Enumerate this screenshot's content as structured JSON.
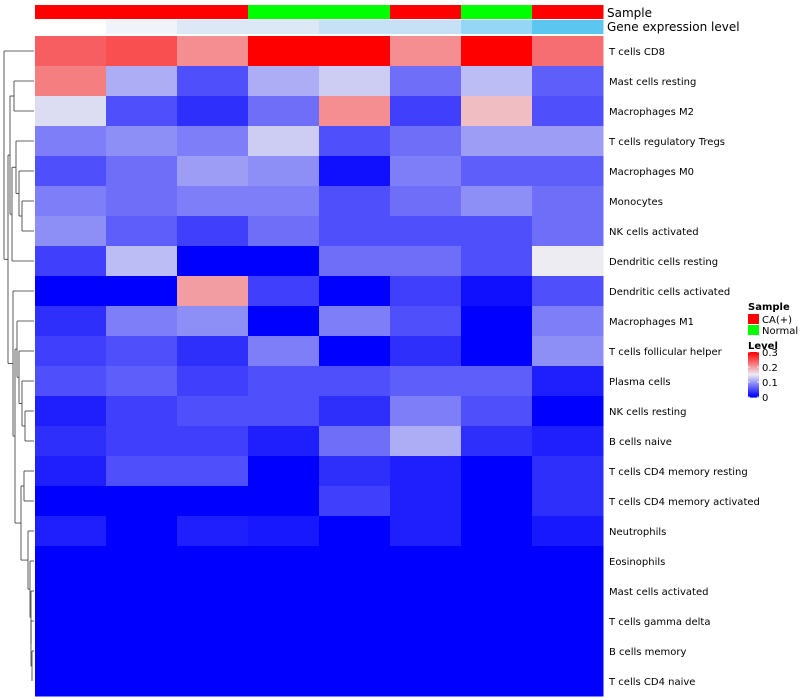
{
  "chart_data": {
    "type": "heatmap",
    "column_annotations": [
      {
        "name": "Sample",
        "values": [
          "CA(+)",
          "CA(+)",
          "CA(+)",
          "Normal",
          "Normal",
          "CA(+)",
          "Normal",
          "CA(+)"
        ]
      },
      {
        "name": "Gene expression level",
        "values": [
          0,
          1,
          2,
          2,
          3,
          3,
          4,
          5
        ]
      }
    ],
    "rows": [
      "T cells CD8",
      "Mast cells resting",
      "Macrophages M2",
      "T cells regulatory  Tregs",
      "Macrophages M0",
      "Monocytes",
      "NK cells activated",
      "Dendritic cells resting",
      "Dendritic cells activated",
      "Macrophages M1",
      "T cells follicular helper",
      "Plasma cells",
      "NK cells resting",
      "B cells naive",
      "T cells CD4 memory resting",
      "T cells CD4 memory activated",
      "Neutrophils",
      "Eosinophils",
      "Mast cells activated",
      "T cells gamma delta",
      "B cells memory",
      "T cells CD4 naive"
    ],
    "values": [
      [
        0.24,
        0.25,
        0.21,
        0.3,
        0.3,
        0.21,
        0.3,
        0.23
      ],
      [
        0.22,
        0.11,
        0.05,
        0.11,
        0.13,
        0.07,
        0.12,
        0.06
      ],
      [
        0.14,
        0.05,
        0.03,
        0.07,
        0.21,
        0.04,
        0.18,
        0.05
      ],
      [
        0.08,
        0.09,
        0.08,
        0.13,
        0.05,
        0.07,
        0.1,
        0.1
      ],
      [
        0.05,
        0.07,
        0.1,
        0.09,
        0.01,
        0.08,
        0.06,
        0.06
      ],
      [
        0.08,
        0.07,
        0.08,
        0.08,
        0.05,
        0.07,
        0.09,
        0.07
      ],
      [
        0.09,
        0.06,
        0.04,
        0.07,
        0.05,
        0.05,
        0.05,
        0.07
      ],
      [
        0.04,
        0.12,
        0.0,
        0.0,
        0.07,
        0.07,
        0.05,
        0.15
      ],
      [
        0.0,
        0.0,
        0.2,
        0.04,
        0.0,
        0.04,
        0.01,
        0.05
      ],
      [
        0.03,
        0.08,
        0.09,
        0.0,
        0.08,
        0.05,
        0.0,
        0.08
      ],
      [
        0.04,
        0.05,
        0.03,
        0.08,
        0.0,
        0.03,
        0.0,
        0.09
      ],
      [
        0.05,
        0.06,
        0.04,
        0.05,
        0.05,
        0.06,
        0.06,
        0.02
      ],
      [
        0.02,
        0.04,
        0.05,
        0.05,
        0.03,
        0.08,
        0.05,
        0.0
      ],
      [
        0.03,
        0.04,
        0.04,
        0.02,
        0.07,
        0.11,
        0.03,
        0.02
      ],
      [
        0.02,
        0.05,
        0.05,
        0.0,
        0.03,
        0.02,
        0.0,
        0.03
      ],
      [
        0.0,
        0.0,
        0.0,
        0.0,
        0.04,
        0.02,
        0.0,
        0.03
      ],
      [
        0.02,
        0.0,
        0.02,
        0.015,
        0.0,
        0.02,
        0.0,
        0.015
      ],
      [
        0.0,
        0.0,
        0.0,
        0.0,
        0.0,
        0.0,
        0.0,
        0.0
      ],
      [
        0.0,
        0.0,
        0.0,
        0.0,
        0.0,
        0.0,
        0.0,
        0.0
      ],
      [
        0.0,
        0.0,
        0.0,
        0.0,
        0.0,
        0.0,
        0.0,
        0.0
      ],
      [
        0.0,
        0.0,
        0.0,
        0.0,
        0.0,
        0.0,
        0.0,
        0.0
      ],
      [
        0.0,
        0.0,
        0.0,
        0.0,
        0.0,
        0.0,
        0.0,
        0.0
      ]
    ],
    "color_scale": {
      "low": "#0000ff",
      "mid": "#ececf2",
      "high": "#ff0000",
      "min": 0,
      "mid_value": 0.15,
      "max": 0.3
    },
    "legend": {
      "position": "right",
      "sample_title": "Sample",
      "sample_entries": [
        {
          "label": "CA(+)",
          "color": "#ff0000"
        },
        {
          "label": "Normal",
          "color": "#00ff00"
        }
      ],
      "level_title": "Level",
      "level_ticks": [
        "0.3",
        "0.2",
        "0.1",
        "0"
      ],
      "level_tick_values": [
        0.3,
        0.2,
        0.1,
        0
      ]
    },
    "annotation_colors": {
      "Sample": {
        "CA(+)": "#ff0000",
        "Normal": "#00ff00"
      },
      "Gene expression level": [
        "#ffffff",
        "#f0f3fa",
        "#dde8f7",
        "#c6e0f6",
        "#95d5f5",
        "#5bc6ef"
      ]
    },
    "row_dendrogram": true
  }
}
